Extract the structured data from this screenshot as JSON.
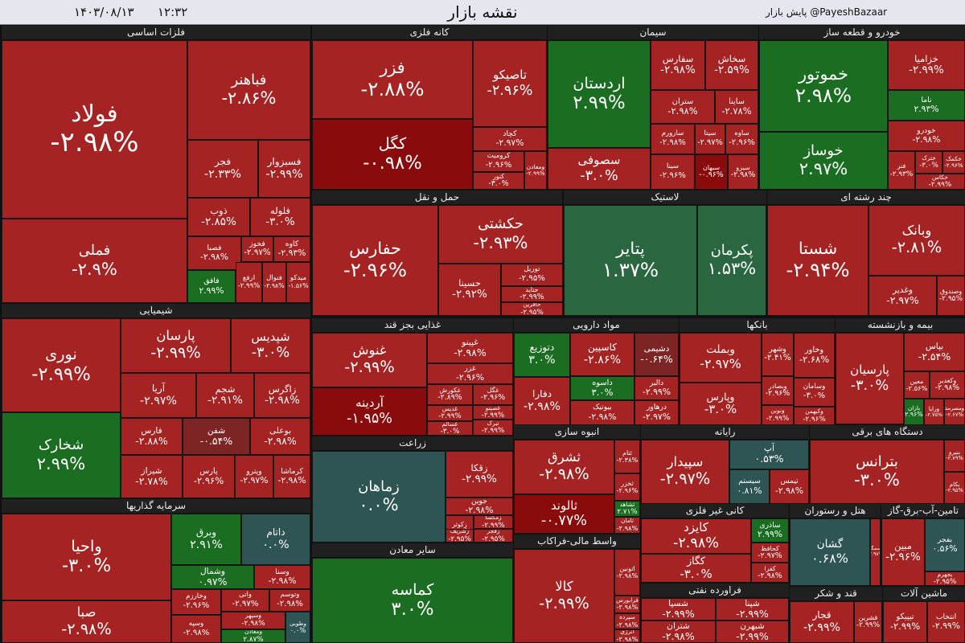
{
  "header": {
    "title": "نقشه بازار",
    "date": "۱۴۰۳/۰۸/۱۳",
    "time": "۱۲:۳۲",
    "source": "پایش بازار @PayeshBazaar"
  },
  "colors": {
    "negative": "#a52323",
    "deep_negative": "#8a0b0b",
    "muted_negative": "#7d2525",
    "positive": "#1b6e21",
    "muted_positive": "#2a6640",
    "flat": "#2e5453"
  },
  "sectors": [
    {
      "name": "فلزات اساسی",
      "tiles": [
        {
          "name": "فولاد",
          "change": "-۲.۹۸%"
        },
        {
          "name": "فملی",
          "change": "-۲.۹%"
        },
        {
          "name": "فباهنر",
          "change": "-۲.۸۶%"
        },
        {
          "name": "فجر",
          "change": "-۲.۳۳%"
        },
        {
          "name": "فسبزوار",
          "change": "-۲.۹۹%"
        },
        {
          "name": "ذوب",
          "change": "-۲.۸۵%"
        },
        {
          "name": "فلوله",
          "change": "-۳.۰%"
        },
        {
          "name": "فصبا",
          "change": "-۲.۹۸%"
        },
        {
          "name": "فخوز",
          "change": "-۲.۹۷%"
        },
        {
          "name": "کاوه",
          "change": "-۲.۹۳%"
        },
        {
          "name": "فافق",
          "change": "۲.۹۹%"
        },
        {
          "name": "ارفع",
          "change": "-۲.۹۹%"
        },
        {
          "name": "فنوال",
          "change": "-۲.۹۸%"
        },
        {
          "name": "میدکو",
          "change": "-۱.۵۶%"
        }
      ]
    },
    {
      "name": "کانه فلزی",
      "tiles": [
        {
          "name": "فزر",
          "change": "-۲.۸۸%"
        },
        {
          "name": "تاصیکو",
          "change": "-۲.۹۶%"
        },
        {
          "name": "کگل",
          "change": "-۰.۹۸%"
        },
        {
          "name": "کچاد",
          "change": "-۲.۹۷%"
        },
        {
          "name": "کرومیت",
          "change": "-۲.۹۶%"
        },
        {
          "name": "کنور",
          "change": "-۳.۰%"
        },
        {
          "name": "ومعادن",
          "change": "-۲.۹۹%"
        }
      ]
    },
    {
      "name": "سیمان",
      "tiles": [
        {
          "name": "اردستان",
          "change": "۲.۹۹%"
        },
        {
          "name": "سصوفی",
          "change": "-۳.۰%"
        },
        {
          "name": "سفارس",
          "change": "-۲.۹۸%"
        },
        {
          "name": "سخاش",
          "change": "-۲.۵۹%"
        },
        {
          "name": "ستران",
          "change": "-۲.۹۸%"
        },
        {
          "name": "ساینا",
          "change": "-۲.۷۸%"
        },
        {
          "name": "سارورم",
          "change": "-۲.۹۸%"
        },
        {
          "name": "سیتا",
          "change": "-۲.۹۷%"
        },
        {
          "name": "ساوه",
          "change": "-۲.۹۶%"
        },
        {
          "name": "سینا",
          "change": "-۲.۹۶%"
        },
        {
          "name": "سبهان",
          "change": "-۰.۹۶%"
        },
        {
          "name": "سیزو",
          "change": "-۲.۹۸%"
        }
      ]
    },
    {
      "name": "خودرو و قطعه ساز",
      "tiles": [
        {
          "name": "خموتور",
          "change": "۲.۹۸%"
        },
        {
          "name": "خوساز",
          "change": "۲.۹۷%"
        },
        {
          "name": "خزامیا",
          "change": "-۲.۹۹%"
        },
        {
          "name": "ناما",
          "change": "۲.۹۳%"
        },
        {
          "name": "خودرو",
          "change": "-۲.۹۸%"
        },
        {
          "name": "فنر",
          "change": "-۲.۹۳%"
        },
        {
          "name": "خترک",
          "change": "-۳.۰%"
        },
        {
          "name": "خکمک",
          "change": "-۲.۹۶%"
        },
        {
          "name": "خکاس",
          "change": "-۲.۹۹%"
        }
      ]
    },
    {
      "name": "حمل و نقل",
      "tiles": [
        {
          "name": "حفارس",
          "change": "-۲.۹۶%"
        },
        {
          "name": "حکشتی",
          "change": "-۲.۹۳%"
        },
        {
          "name": "حسینا",
          "change": "-۲.۹۲%"
        },
        {
          "name": "توریل",
          "change": "-۲.۹۵%"
        },
        {
          "name": "حتاید",
          "change": "-۲.۹۹%"
        },
        {
          "name": "حافرین",
          "change": "-۲.۹۵%"
        }
      ]
    },
    {
      "name": "لاستیک",
      "tiles": [
        {
          "name": "پتایر",
          "change": "۱.۳۷%"
        },
        {
          "name": "پکرمان",
          "change": "۱.۵۳%"
        }
      ]
    },
    {
      "name": "چند رشته ای",
      "tiles": [
        {
          "name": "شستا",
          "change": "-۲.۹۴%"
        },
        {
          "name": "وبانک",
          "change": "-۲.۸۱%"
        },
        {
          "name": "وغدیر",
          "change": "-۲.۹۷%"
        },
        {
          "name": "وصندوق",
          "change": "-۲.۹۵%"
        }
      ]
    },
    {
      "name": "شیمیایی",
      "tiles": [
        {
          "name": "نوری",
          "change": "-۲.۹۹%"
        },
        {
          "name": "شخارک",
          "change": "۲.۹۹%"
        },
        {
          "name": "پارسان",
          "change": "-۲.۹۹%"
        },
        {
          "name": "شپدیس",
          "change": "-۳.۰%"
        },
        {
          "name": "آریا",
          "change": "-۲.۹۷%"
        },
        {
          "name": "شجم",
          "change": "-۲.۹۱%"
        },
        {
          "name": "زاگرس",
          "change": "-۲.۹۸%"
        },
        {
          "name": "فارس",
          "change": "-۲.۸۸%"
        },
        {
          "name": "شفن",
          "change": "-۰.۵۴%"
        },
        {
          "name": "بوعلی",
          "change": "-۲.۹۸%"
        },
        {
          "name": "شیراز",
          "change": "-۲.۷۸%"
        },
        {
          "name": "پارس",
          "change": "-۲.۹۶%"
        },
        {
          "name": "وپترو",
          "change": "-۲.۹۷%"
        },
        {
          "name": "کرماشا",
          "change": "-۲.۹۸%"
        }
      ]
    },
    {
      "name": "غذایی بجز قند",
      "tiles": [
        {
          "name": "غنوش",
          "change": "-۲.۹۹%"
        },
        {
          "name": "آردینه",
          "change": "-۱.۹۵%"
        },
        {
          "name": "غپینو",
          "change": "-۲.۹۸%"
        },
        {
          "name": "غزر",
          "change": "-۲.۹۶%"
        },
        {
          "name": "غکورش",
          "change": "-۲.۸۹%"
        },
        {
          "name": "غگل",
          "change": "-۲.۹۶%"
        },
        {
          "name": "غدیس",
          "change": "-۲.۹۹%"
        },
        {
          "name": "غصینو",
          "change": "-۲.۹۹%"
        },
        {
          "name": "غسالم",
          "change": "-۳.۰%"
        },
        {
          "name": "تبرک",
          "change": "-۲.۹۹%"
        }
      ]
    },
    {
      "name": "مواد دارویی",
      "tiles": [
        {
          "name": "دتوزیع",
          "change": "۳.۰%"
        },
        {
          "name": "دفارا",
          "change": "-۲.۹۸%"
        },
        {
          "name": "کاسپین",
          "change": "-۲.۸۶%"
        },
        {
          "name": "دشیمی",
          "change": "-۰.۶۴%"
        },
        {
          "name": "داسوه",
          "change": "۳.۰%"
        },
        {
          "name": "دالبر",
          "change": "-۲.۹۹%"
        },
        {
          "name": "بیوتیک",
          "change": "-۲.۹۸%"
        },
        {
          "name": "درهاور",
          "change": "-۲.۹۷%"
        }
      ]
    },
    {
      "name": "بانکها",
      "tiles": [
        {
          "name": "وبملت",
          "change": "-۲.۹۷%"
        },
        {
          "name": "وپارس",
          "change": "-۳.۰%"
        },
        {
          "name": "وبصادر",
          "change": "-۲.۹۶%"
        },
        {
          "name": "ونوین",
          "change": "-۲.۹۹%"
        },
        {
          "name": "وخاور",
          "change": "-۲.۶۸%"
        },
        {
          "name": "وسامان",
          "change": "-۳.۰%"
        },
        {
          "name": "وکبهمن",
          "change": "-۲.۹۶%"
        },
        {
          "name": "وشهر",
          "change": "-۲.۴۱%"
        }
      ]
    },
    {
      "name": "بیمه و بازنشسته",
      "tiles": [
        {
          "name": "پارسیان",
          "change": "-۳.۰%"
        },
        {
          "name": "بپاس",
          "change": "-۲.۵۴%"
        },
        {
          "name": "معین",
          "change": "-۲.۵۶%"
        },
        {
          "name": "وکغدیر",
          "change": "-۲.۹۸%"
        },
        {
          "name": "بازان",
          "change": "۲.۹۶%"
        },
        {
          "name": "ورایا",
          "change": "-۲.۷۵%"
        },
        {
          "name": "ومسرمد",
          "change": "-۲.۶۷%"
        }
      ]
    },
    {
      "name": "زراعت",
      "tiles": [
        {
          "name": "زماهان",
          "change": "۰.۰%"
        },
        {
          "name": "زقکا",
          "change": "-۲.۹۹%"
        },
        {
          "name": "جوین",
          "change": "-۲.۹۸%"
        },
        {
          "name": "زکوثر",
          "change": "-۲.۳۸%"
        },
        {
          "name": "زمگسا",
          "change": "-۲.۹۹%"
        },
        {
          "name": "زشریف",
          "change": "-۲.۹۵%"
        },
        {
          "name": "زفجر",
          "change": "-۲.۹۵%"
        }
      ]
    },
    {
      "name": "انبوه سازی",
      "tiles": [
        {
          "name": "ثشرق",
          "change": "-۲.۹۸%"
        },
        {
          "name": "ثالوند",
          "change": "-۰.۷۷%"
        },
        {
          "name": "ثتام",
          "change": "-۲.۳۸%"
        },
        {
          "name": "ثخزر",
          "change": "-۲.۹۶%"
        },
        {
          "name": "ثشاهد",
          "change": "۲.۷۱%"
        },
        {
          "name": "ثامان",
          "change": "-۲.۹۸%"
        }
      ]
    },
    {
      "name": "رایانه",
      "tiles": [
        {
          "name": "سپیدار",
          "change": "-۲.۹۷%"
        },
        {
          "name": "آپ",
          "change": "۰.۵۳%"
        },
        {
          "name": "سیستم",
          "change": "۰.۸۱%"
        },
        {
          "name": "تیمس",
          "change": "-۲.۹۸%"
        }
      ]
    },
    {
      "name": "دستگاه های برقی",
      "tiles": [
        {
          "name": "بترانس",
          "change": "-۳.۰%"
        },
        {
          "name": "بنیرو",
          "change": "-۲.۷۹%"
        },
        {
          "name": "بکام",
          "change": "-۲.۹۵%"
        }
      ]
    },
    {
      "name": "سرمایه گذاریها",
      "tiles": [
        {
          "name": "واحیا",
          "change": "-۳.۰%"
        },
        {
          "name": "صبا",
          "change": "-۲.۹۸%"
        },
        {
          "name": "وبرق",
          "change": "۲.۹۱%"
        },
        {
          "name": "داتام",
          "change": "۰.۰%"
        },
        {
          "name": "وشمال",
          "change": "۰.۹۷%"
        },
        {
          "name": "وسنا",
          "change": "-۲.۹۸%"
        },
        {
          "name": "وخارزم",
          "change": "-۲.۹۶%"
        },
        {
          "name": "واتی",
          "change": "-۲.۹۷%"
        },
        {
          "name": "وتوسم",
          "change": "-۲.۹۸%"
        },
        {
          "name": "وسپه",
          "change": "-۲.۹۸%"
        },
        {
          "name": "وسپهر",
          "change": "-۲.۹۸%"
        },
        {
          "name": "ومعادن",
          "change": "۲.۸۷%"
        },
        {
          "name": "وطوبی",
          "change": "۰.۰%"
        }
      ]
    },
    {
      "name": "سایر معادن",
      "tiles": [
        {
          "name": "کماسه",
          "change": "۳.۰%"
        }
      ]
    },
    {
      "name": "واسط مالی-فراکاب",
      "tiles": [
        {
          "name": "کالا",
          "change": "-۲.۹۹%"
        },
        {
          "name": "اتونین",
          "change": "-۲.۹۸%"
        },
        {
          "name": "فرابورس",
          "change": "-۲.۹۸%"
        },
        {
          "name": "سپرده",
          "change": "-۲.۹۸%"
        },
        {
          "name": "انرژی",
          "change": "-۲.۹۸%"
        }
      ]
    },
    {
      "name": "کانی غیر فلزی",
      "tiles": [
        {
          "name": "کایزد",
          "change": "-۲.۹۸%"
        },
        {
          "name": "کگاز",
          "change": "-۳.۰%"
        },
        {
          "name": "ساذری",
          "change": "۲.۹۹%"
        },
        {
          "name": "کحافظ",
          "change": "-۲.۹۷%"
        },
        {
          "name": "کفرا",
          "change": "-۲.۹۸%"
        }
      ]
    },
    {
      "name": "هتل و رستوران",
      "tiles": [
        {
          "name": "گشان",
          "change": "۰.۶۸%"
        },
        {
          "name": "سمگا",
          "change": "-۲.۹۸%"
        }
      ]
    },
    {
      "name": "تامین-آب-برق-گاز",
      "tiles": [
        {
          "name": "مبین",
          "change": "-۲.۹۶%"
        },
        {
          "name": "بفجر",
          "change": "۰.۵۶%"
        },
        {
          "name": "بجهرم",
          "change": "-۲.۹۵%"
        }
      ]
    },
    {
      "name": "فراورده نفتی",
      "tiles": [
        {
          "name": "شسپا",
          "change": "-۲.۹۹%"
        },
        {
          "name": "شپنا",
          "change": "-۲.۹۹%"
        },
        {
          "name": "شتران",
          "change": "-۲.۹۸%"
        },
        {
          "name": "شبهرن",
          "change": "-۲.۹۹%"
        }
      ]
    },
    {
      "name": "قند و شکر",
      "tiles": [
        {
          "name": "قجار",
          "change": "-۲.۹۹%"
        },
        {
          "name": "قشرین",
          "change": "-۲.۹۹%"
        }
      ]
    },
    {
      "name": "ماشین آلات",
      "tiles": [
        {
          "name": "تیپیکو",
          "change": "-۲.۹۹%"
        },
        {
          "name": "انتخاب",
          "change": "-۲.۹۹%"
        }
      ]
    }
  ]
}
